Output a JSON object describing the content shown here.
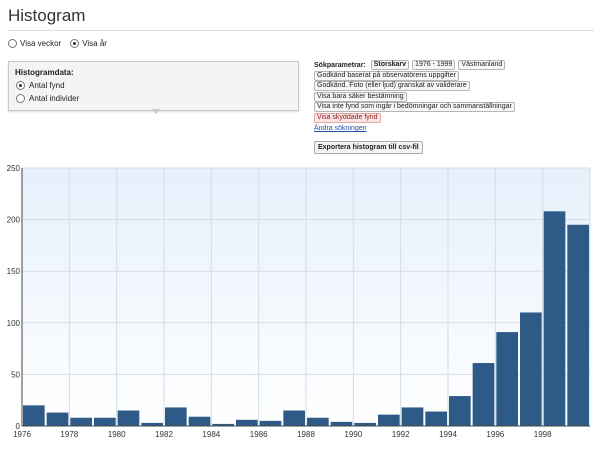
{
  "page": {
    "title": "Histogram"
  },
  "period_options": [
    {
      "label": "Visa veckor",
      "selected": false
    },
    {
      "label": "Visa år",
      "selected": true
    }
  ],
  "histogram_box": {
    "heading": "Histogramdata:",
    "options": [
      {
        "label": "Antal fynd",
        "selected": true
      },
      {
        "label": "Antal individer",
        "selected": false
      }
    ]
  },
  "search_params": {
    "label": "Sökparametrar:",
    "tags_row1": [
      "Storskarv",
      "1976 - 1999",
      "Västmanland"
    ],
    "tags": [
      "Godkänd baserat på observatörens uppgifter",
      "Godkänd. Foto (eller ljud) granskat av validerare",
      "Visa bara säker bestämning",
      "Visa inte fynd som ingår i bedömningar och sammanställningar",
      "Visa skyddade fynd"
    ],
    "change_link": "Ändra sökningen",
    "export_button": "Exportera histogram till csv-fil"
  },
  "chart_data": {
    "type": "bar",
    "categories": [
      "1976",
      "1977",
      "1978",
      "1979",
      "1980",
      "1981",
      "1982",
      "1983",
      "1984",
      "1985",
      "1986",
      "1987",
      "1988",
      "1989",
      "1990",
      "1991",
      "1992",
      "1993",
      "1994",
      "1995",
      "1996",
      "1997",
      "1998",
      "1999"
    ],
    "values": [
      20,
      13,
      8,
      8,
      15,
      3,
      18,
      9,
      2,
      6,
      5,
      15,
      8,
      4,
      3,
      11,
      18,
      14,
      29,
      61,
      91,
      110,
      208,
      195
    ],
    "x_tick_labels": [
      "1976",
      "1978",
      "1980",
      "1982",
      "1984",
      "1986",
      "1988",
      "1990",
      "1992",
      "1994",
      "1996",
      "1998"
    ],
    "y_ticks": [
      0,
      50,
      100,
      150,
      200,
      250
    ],
    "ylim": [
      0,
      250
    ],
    "grid": true,
    "bar_color": "#2e5a88"
  }
}
